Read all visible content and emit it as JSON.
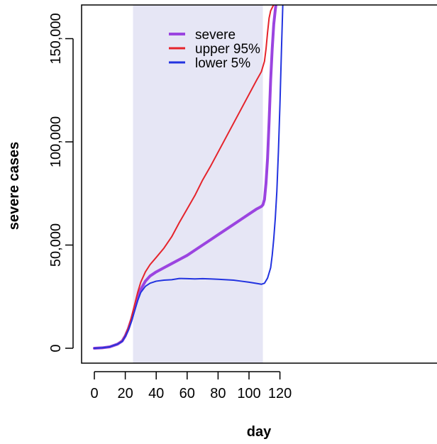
{
  "chart_data": {
    "type": "line",
    "xlabel": "day",
    "ylabel": "severe cases",
    "xlim": [
      -4,
      132
    ],
    "ylim": [
      -7000,
      167000
    ],
    "x_ticks": [
      0,
      20,
      40,
      60,
      80,
      100,
      120
    ],
    "y_ticks": [
      0,
      50000,
      100000,
      150000
    ],
    "x_tick_labels": [
      "0",
      "20",
      "40",
      "60",
      "80",
      "100",
      "120"
    ],
    "y_tick_labels": [
      "0",
      "50,000",
      "100,000",
      "150,000"
    ],
    "shaded_region": {
      "x_start": 25,
      "x_end": 109,
      "color": "#e6e6f5"
    },
    "legend": {
      "position": "top-left"
    },
    "series": [
      {
        "name": "severe",
        "color": "#9b44e0",
        "width": 4,
        "x": [
          0,
          5,
          10,
          15,
          18,
          20,
          22,
          24,
          26,
          28,
          30,
          33,
          36,
          40,
          45,
          50,
          55,
          60,
          65,
          70,
          75,
          80,
          85,
          90,
          95,
          100,
          105,
          108,
          109,
          110,
          111,
          112,
          113,
          114,
          115,
          116,
          117,
          118
        ],
        "values": [
          0,
          200,
          700,
          2000,
          3500,
          6000,
          9500,
          14000,
          19500,
          24500,
          28500,
          32500,
          35000,
          37000,
          39000,
          41000,
          43000,
          45000,
          47500,
          50000,
          52500,
          55000,
          57500,
          60000,
          62500,
          65000,
          67500,
          68700,
          69500,
          72000,
          80000,
          92000,
          110000,
          130000,
          145000,
          157000,
          164000,
          170000
        ]
      },
      {
        "name": "upper 95%",
        "color": "#e5242c",
        "width": 2,
        "x": [
          0,
          5,
          10,
          15,
          18,
          20,
          22,
          24,
          26,
          28,
          30,
          33,
          36,
          40,
          45,
          50,
          55,
          60,
          65,
          70,
          75,
          80,
          85,
          90,
          95,
          100,
          105,
          108,
          110,
          111,
          112,
          113,
          114,
          115,
          116,
          117
        ],
        "values": [
          0,
          200,
          700,
          2000,
          3500,
          6200,
          10000,
          15000,
          21000,
          27000,
          32000,
          37000,
          40500,
          44000,
          48500,
          54000,
          61000,
          67500,
          74000,
          81500,
          88000,
          95000,
          102000,
          109000,
          116000,
          123000,
          130000,
          134000,
          139000,
          145000,
          153000,
          160000,
          163500,
          165000,
          166500,
          170000
        ]
      },
      {
        "name": "lower 5%",
        "color": "#2233e0",
        "width": 2,
        "x": [
          0,
          5,
          10,
          15,
          18,
          20,
          22,
          24,
          26,
          28,
          30,
          33,
          36,
          40,
          45,
          50,
          55,
          60,
          65,
          70,
          75,
          80,
          85,
          90,
          95,
          100,
          105,
          108,
          110,
          112,
          114,
          115,
          116,
          117,
          118,
          119,
          120,
          121,
          122
        ],
        "values": [
          0,
          200,
          700,
          2000,
          3300,
          5700,
          8800,
          13000,
          18000,
          23000,
          27000,
          30000,
          31500,
          32500,
          33000,
          33200,
          33800,
          33700,
          33600,
          33700,
          33600,
          33400,
          33200,
          33000,
          32500,
          32000,
          31400,
          31000,
          31500,
          34000,
          39000,
          45000,
          53000,
          63000,
          76000,
          95000,
          118000,
          145000,
          170000
        ]
      }
    ]
  }
}
